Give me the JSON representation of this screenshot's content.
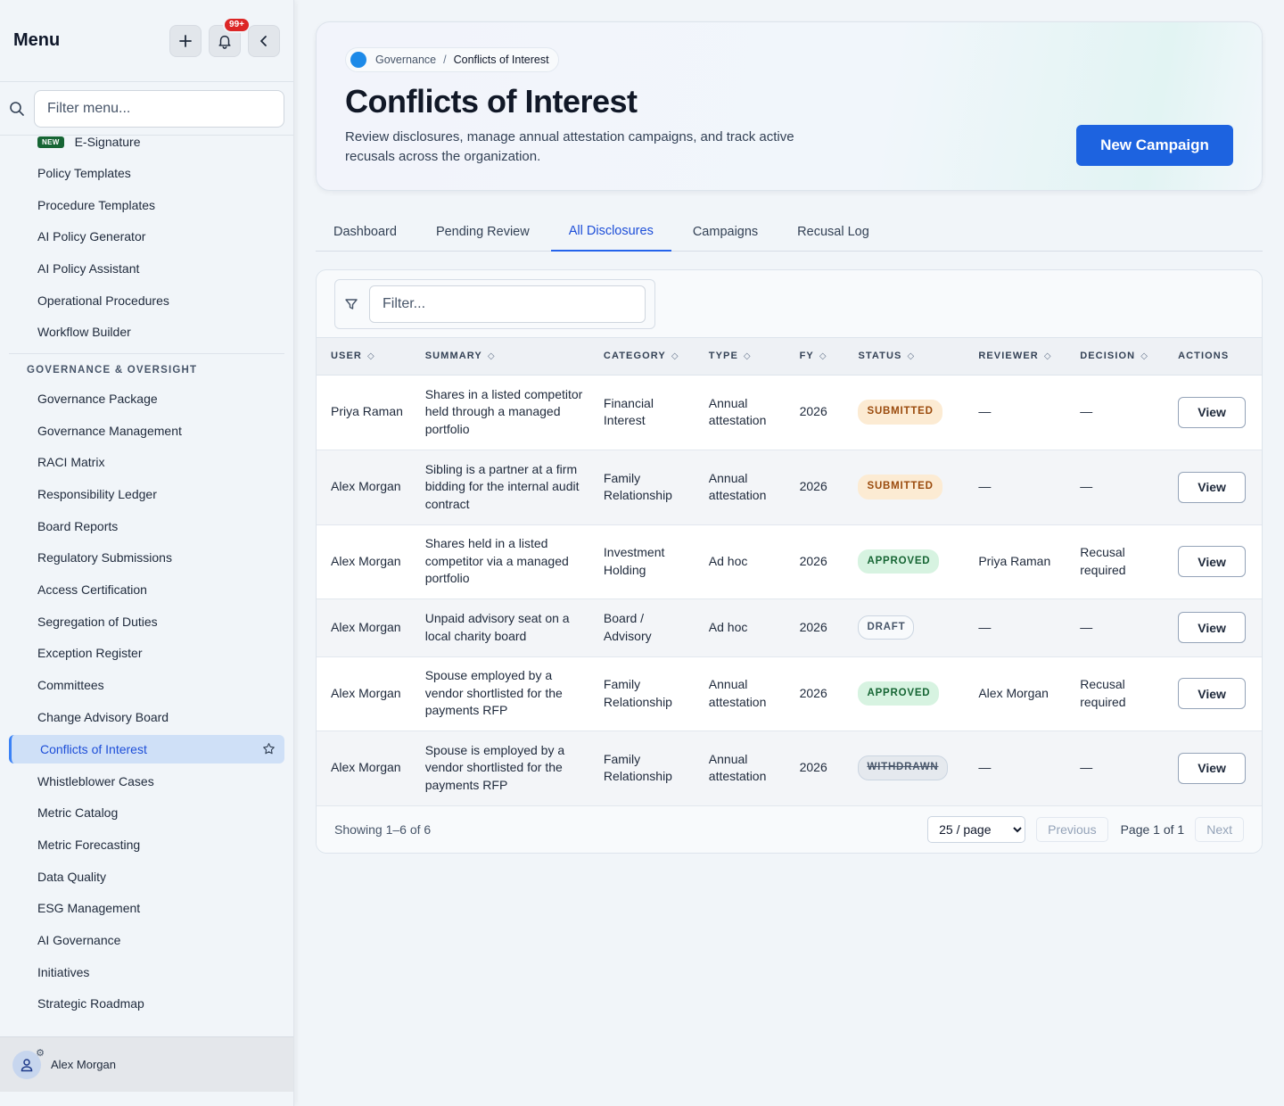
{
  "sidebar": {
    "title": "Menu",
    "notification_count": "99+",
    "search_placeholder": "Filter menu...",
    "new_tag": "NEW",
    "items_top": [
      {
        "label": "E-Signature",
        "new": true
      },
      {
        "label": "Policy Templates"
      },
      {
        "label": "Procedure Templates"
      },
      {
        "label": "AI Policy Generator"
      },
      {
        "label": "AI Policy Assistant"
      },
      {
        "label": "Operational Procedures"
      },
      {
        "label": "Workflow Builder"
      }
    ],
    "section_label": "GOVERNANCE & OVERSIGHT",
    "items_section": [
      {
        "label": "Governance Package"
      },
      {
        "label": "Governance Management"
      },
      {
        "label": "RACI Matrix"
      },
      {
        "label": "Responsibility Ledger"
      },
      {
        "label": "Board Reports"
      },
      {
        "label": "Regulatory Submissions"
      },
      {
        "label": "Access Certification"
      },
      {
        "label": "Segregation of Duties"
      },
      {
        "label": "Exception Register"
      },
      {
        "label": "Committees"
      },
      {
        "label": "Change Advisory Board"
      },
      {
        "label": "Conflicts of Interest",
        "active": true
      },
      {
        "label": "Whistleblower Cases"
      },
      {
        "label": "Metric Catalog"
      },
      {
        "label": "Metric Forecasting"
      },
      {
        "label": "Data Quality"
      },
      {
        "label": "ESG Management"
      },
      {
        "label": "AI Governance"
      },
      {
        "label": "Initiatives"
      },
      {
        "label": "Strategic Roadmap"
      }
    ],
    "user_name": "Alex Morgan"
  },
  "hero": {
    "breadcrumb_parent": "Governance",
    "breadcrumb_sep": "/",
    "breadcrumb_current": "Conflicts of Interest",
    "title": "Conflicts of Interest",
    "description": "Review disclosures, manage annual attestation campaigns, and track active recusals across the organization.",
    "new_campaign_label": "New Campaign"
  },
  "tabs": [
    {
      "label": "Dashboard"
    },
    {
      "label": "Pending Review"
    },
    {
      "label": "All Disclosures",
      "active": true
    },
    {
      "label": "Campaigns"
    },
    {
      "label": "Recusal Log"
    }
  ],
  "table": {
    "filter_placeholder": "Filter...",
    "columns": [
      "USER",
      "SUMMARY",
      "CATEGORY",
      "TYPE",
      "FY",
      "STATUS",
      "REVIEWER",
      "DECISION",
      "ACTIONS"
    ],
    "rows": [
      {
        "user": "Priya Raman",
        "summary": "Shares in a listed competitor held through a managed portfolio",
        "category": "Financial Interest",
        "type": "Annual attestation",
        "fy": "2026",
        "status": "SUBMITTED",
        "status_kind": "submitted",
        "reviewer": "—",
        "decision": "—",
        "action": "View"
      },
      {
        "user": "Alex Morgan",
        "summary": "Sibling is a partner at a firm bidding for the internal audit contract",
        "category": "Family Relationship",
        "type": "Annual attestation",
        "fy": "2026",
        "status": "SUBMITTED",
        "status_kind": "submitted",
        "reviewer": "—",
        "decision": "—",
        "action": "View"
      },
      {
        "user": "Alex Morgan",
        "summary": "Shares held in a listed competitor via a managed portfolio",
        "category": "Investment Holding",
        "type": "Ad hoc",
        "fy": "2026",
        "status": "APPROVED",
        "status_kind": "approved",
        "reviewer": "Priya Raman",
        "decision": "Recusal required",
        "action": "View"
      },
      {
        "user": "Alex Morgan",
        "summary": "Unpaid advisory seat on a local charity board",
        "category": "Board / Advisory",
        "type": "Ad hoc",
        "fy": "2026",
        "status": "DRAFT",
        "status_kind": "draft",
        "reviewer": "—",
        "decision": "—",
        "action": "View"
      },
      {
        "user": "Alex Morgan",
        "summary": "Spouse employed by a vendor shortlisted for the payments RFP",
        "category": "Family Relationship",
        "type": "Annual attestation",
        "fy": "2026",
        "status": "APPROVED",
        "status_kind": "approved",
        "reviewer": "Alex Morgan",
        "decision": "Recusal required",
        "action": "View"
      },
      {
        "user": "Alex Morgan",
        "summary": "Spouse is employed by a vendor shortlisted for the payments RFP",
        "category": "Family Relationship",
        "type": "Annual attestation",
        "fy": "2026",
        "status": "WITHDRAWN",
        "status_kind": "withdrawn",
        "reviewer": "—",
        "decision": "—",
        "action": "View"
      }
    ],
    "row_heights": [
      84,
      84,
      83,
      65,
      83,
      84
    ]
  },
  "pagination": {
    "showing": "Showing 1–6 of 6",
    "page_size": "25 / page",
    "previous": "Previous",
    "page_info": "Page 1 of 1",
    "next": "Next"
  }
}
